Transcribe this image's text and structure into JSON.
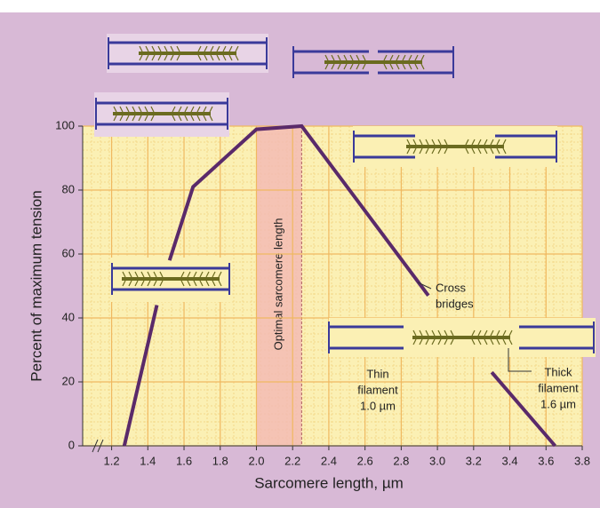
{
  "chart_data": {
    "type": "line",
    "xlabel": "Sarcomere length, µm",
    "ylabel": "Percent of maximum tension",
    "x": [
      1.27,
      1.45,
      1.5,
      1.52,
      1.65,
      2.0,
      2.25,
      2.95,
      3.1,
      3.3,
      3.65
    ],
    "values": [
      0,
      44,
      null,
      58,
      81,
      99,
      100,
      47,
      null,
      23,
      0
    ],
    "color": "#5a2a6a",
    "xlim": [
      1.04,
      3.8
    ],
    "ylim": [
      0,
      100
    ],
    "xticks": [
      1.2,
      1.4,
      1.6,
      1.8,
      {
        "value": 2,
        "label": "2.0"
      },
      2.2,
      2.4,
      2.6,
      2.8,
      {
        "value": 3,
        "label": "3.0"
      },
      3.2,
      3.4,
      3.6,
      3.8
    ],
    "yticks": [
      0,
      20,
      40,
      60,
      80,
      100
    ],
    "grid": true,
    "band": {
      "range": [
        2.0,
        2.25
      ],
      "label": "Optimal sarcomere length"
    },
    "annotations": [
      {
        "lines": [
          "Cross",
          "bridges"
        ]
      },
      {
        "lines": [
          "Thin",
          "filament",
          "1.0 µm"
        ]
      },
      {
        "lines": [
          "Thick",
          "filament",
          "1.6 µm"
        ]
      }
    ]
  }
}
